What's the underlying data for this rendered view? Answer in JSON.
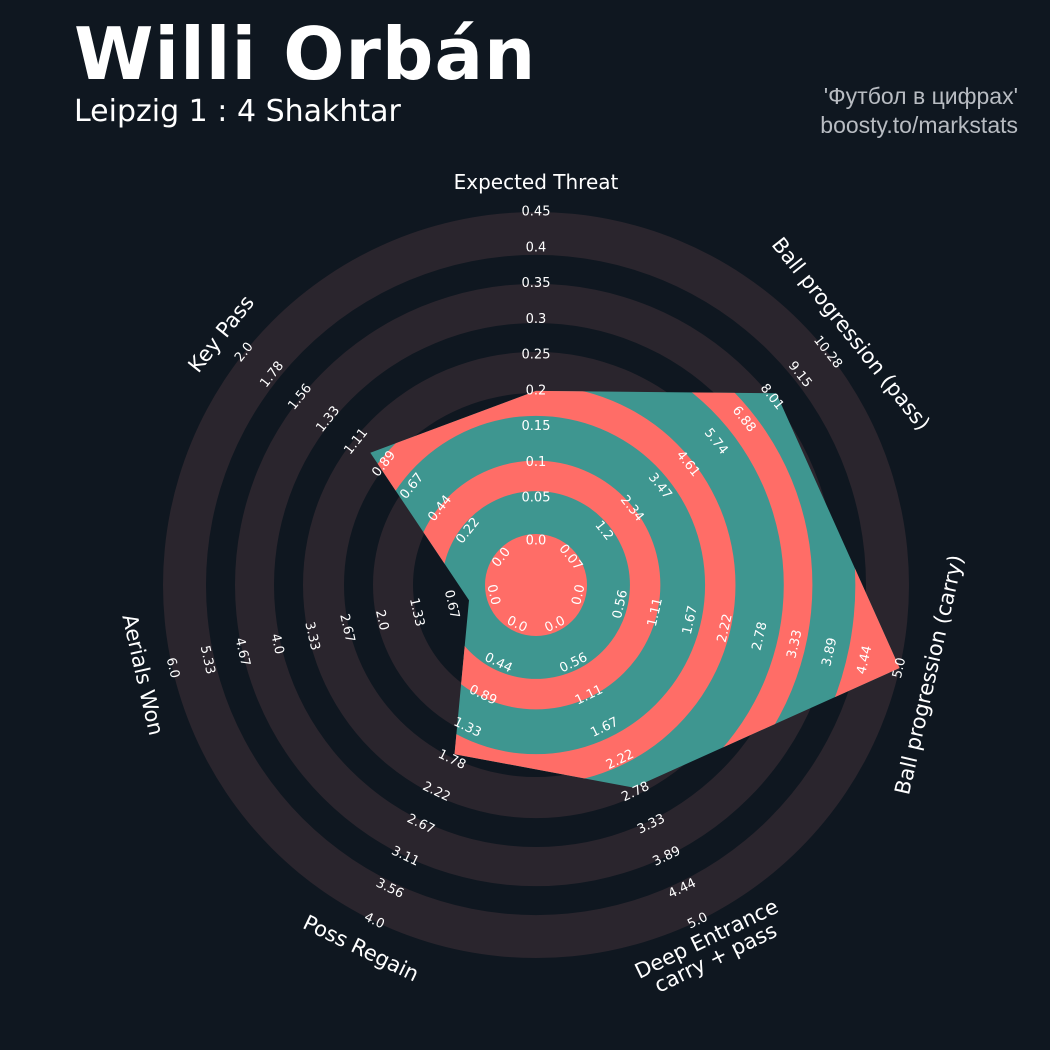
{
  "header": {
    "player": "Willi Orbán",
    "match": "Leipzig 1 : 4 Shakhtar",
    "credit_line1": "'Футбол в цифрах'",
    "credit_line2": "boosty.to/markstats"
  },
  "colors": {
    "background": "#0f1720",
    "ring": "#2a252d",
    "fill_primary": "#3e9690",
    "fill_secondary": "#ff6d67",
    "text": "#ffffff"
  },
  "chart_data": {
    "type": "radar",
    "title": "Willi Orbán",
    "subtitle": "Leipzig 1 : 4 Shakhtar",
    "axes": [
      {
        "label": "Expected Threat",
        "ticks": [
          "0.0",
          "0.05",
          "0.1",
          "0.15",
          "0.2",
          "0.25",
          "0.3",
          "0.35",
          "0.4",
          "0.45"
        ],
        "min": 0.0,
        "max": 0.45
      },
      {
        "label": "Ball progression (pass)",
        "ticks": [
          "0.07",
          "1.2",
          "2.34",
          "3.47",
          "4.61",
          "5.74",
          "6.88",
          "8.01",
          "9.15",
          "10.28"
        ],
        "min": 0.07,
        "max": 10.28
      },
      {
        "label": "Ball progression (carry)",
        "ticks": [
          "0.0",
          "0.56",
          "1.11",
          "1.67",
          "2.22",
          "2.78",
          "3.33",
          "3.89",
          "4.44",
          "5.0"
        ],
        "min": 0.0,
        "max": 5.0
      },
      {
        "label": "Deep Entrance\ncarry + pass",
        "ticks": [
          "0.0",
          "0.56",
          "1.11",
          "1.67",
          "2.22",
          "2.78",
          "3.33",
          "3.89",
          "4.44",
          "5.0"
        ],
        "min": 0.0,
        "max": 5.0
      },
      {
        "label": "Poss Regain",
        "ticks": [
          "0.0",
          "0.44",
          "0.89",
          "1.33",
          "1.78",
          "2.22",
          "2.67",
          "3.11",
          "3.56",
          "4.0"
        ],
        "min": 0.0,
        "max": 4.0
      },
      {
        "label": "Aerials Won",
        "ticks": [
          "0.0",
          "0.67",
          "1.33",
          "2.0",
          "2.67",
          "3.33",
          "4.0",
          "4.67",
          "5.33",
          "6.0"
        ],
        "min": 0.0,
        "max": 6.0
      },
      {
        "label": "Key Pass",
        "ticks": [
          "0.0",
          "0.22",
          "0.44",
          "0.67",
          "0.89",
          "1.11",
          "1.33",
          "1.56",
          "1.78",
          "2.0"
        ],
        "min": 0.0,
        "max": 2.0
      }
    ],
    "series": [
      {
        "values": [
          0.2,
          8.2,
          5.0,
          2.7,
          1.7,
          0.33,
          1.0
        ]
      }
    ]
  }
}
